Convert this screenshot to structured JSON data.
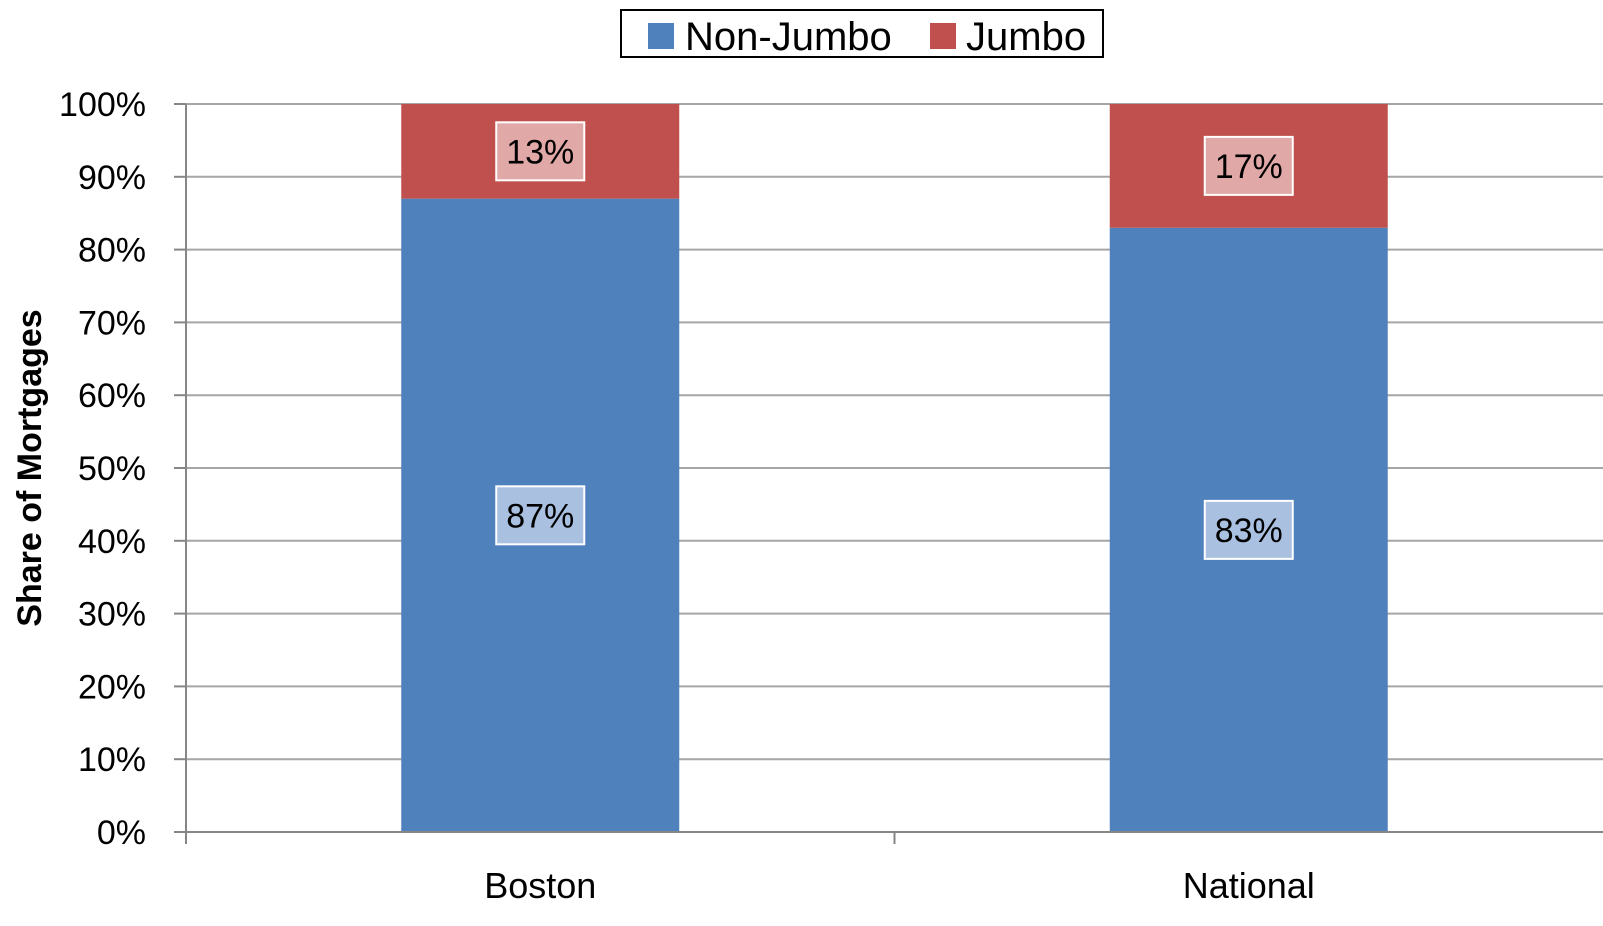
{
  "chart_data": {
    "type": "bar",
    "stacked": true,
    "categories": [
      "Boston",
      "National"
    ],
    "series": [
      {
        "name": "Non-Jumbo",
        "values": [
          87,
          83
        ],
        "labels": [
          "87%",
          "83%"
        ]
      },
      {
        "name": "Jumbo",
        "values": [
          13,
          17
        ],
        "labels": [
          "13%",
          "17%"
        ]
      }
    ],
    "title": "",
    "xlabel": "",
    "ylabel": "Share of Mortgages",
    "ylim": [
      0,
      100
    ],
    "yticks": [
      "0%",
      "10%",
      "20%",
      "30%",
      "40%",
      "50%",
      "60%",
      "70%",
      "80%",
      "90%",
      "100%"
    ],
    "grid": true,
    "legend_position": "top-center",
    "colors": {
      "Non-Jumbo": "#4f81bd",
      "Jumbo": "#c0504d",
      "Non-Jumbo label fill": "#a9c0e0",
      "Jumbo label fill": "#e0a8a6",
      "grid": "#a6a6a6",
      "axis": "#868686"
    }
  }
}
